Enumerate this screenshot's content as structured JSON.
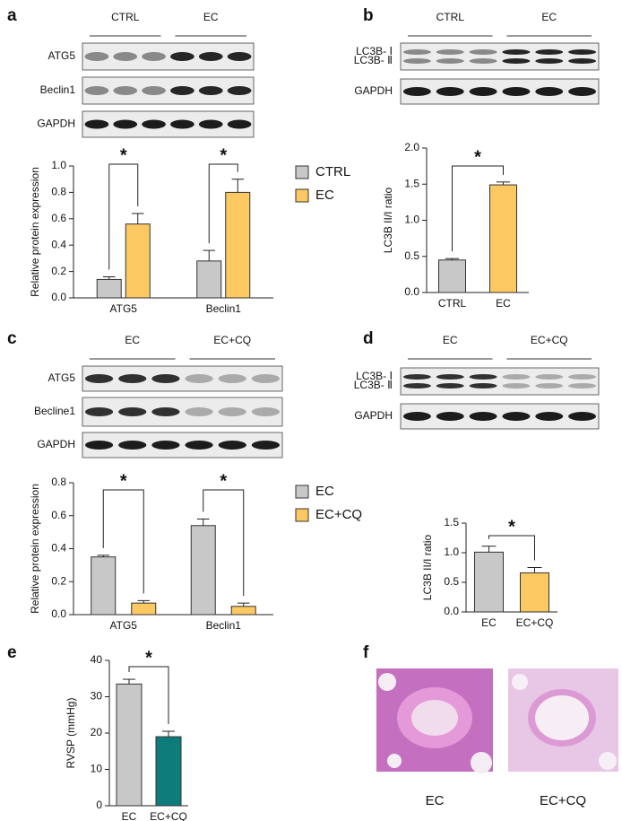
{
  "panel_labels": [
    "a",
    "b",
    "c",
    "d",
    "e",
    "f"
  ],
  "blots": [
    {
      "groups": [
        "CTRL",
        "EC"
      ],
      "rows": [
        [
          "ATG5"
        ],
        [
          "Beclin1"
        ],
        [
          "GAPDH"
        ]
      ]
    },
    {
      "groups": [
        "CTRL",
        "EC"
      ],
      "rows": [
        [
          "LC3B- Ⅰ",
          "LC3B- Ⅱ"
        ],
        [
          "GAPDH"
        ]
      ]
    },
    {
      "groups": [
        "EC",
        "EC+CQ"
      ],
      "rows": [
        [
          "ATG5"
        ],
        [
          "Becline1"
        ],
        [
          "GAPDH"
        ]
      ]
    },
    {
      "groups": [
        "EC",
        "EC+CQ"
      ],
      "rows": [
        [
          "LC3B- Ⅰ",
          "LC3B- Ⅱ"
        ],
        [
          "GAPDH"
        ]
      ]
    }
  ],
  "histology": {
    "labels": [
      "EC",
      "EC+CQ"
    ]
  },
  "chart_data": [
    {
      "type": "bar",
      "y_label": "Relative protein expression",
      "categories": [
        "ATG5",
        "Beclin1"
      ],
      "series": [
        {
          "name": "CTRL",
          "color": "#c8c8c8",
          "values": [
            0.14,
            0.28
          ],
          "errors": [
            0.02,
            0.08
          ]
        },
        {
          "name": "EC",
          "color": "#fcc862",
          "values": [
            0.56,
            0.8
          ],
          "errors": [
            0.08,
            0.1
          ]
        }
      ],
      "ylim": [
        0,
        1
      ],
      "yticks": [
        {
          "value": 0,
          "label": "0.0"
        },
        0.2,
        0.4,
        0.6,
        0.8,
        {
          "value": 1,
          "label": "1.0"
        }
      ],
      "annotations": [
        "*",
        "*"
      ],
      "legend": "right"
    },
    {
      "type": "bar",
      "y_label": "LC3B II/I ratio",
      "categories": [
        "CTRL",
        "EC"
      ],
      "values": [
        0.45,
        1.49
      ],
      "errors": [
        0.02,
        0.04
      ],
      "colors": [
        "#c8c8c8",
        "#fcc862"
      ],
      "ylim": [
        0,
        2
      ],
      "yticks": [
        {
          "value": 0,
          "label": "0.0"
        },
        0.5,
        {
          "value": 1,
          "label": "1.0"
        },
        1.5,
        {
          "value": 2,
          "label": "2.0"
        }
      ],
      "annotations": [
        "*"
      ]
    },
    {
      "type": "bar",
      "y_label": "Relative protein expression",
      "categories": [
        "ATG5",
        "Beclin1"
      ],
      "series": [
        {
          "name": "EC",
          "color": "#c8c8c8",
          "values": [
            0.35,
            0.54
          ],
          "errors": [
            0.01,
            0.04
          ]
        },
        {
          "name": "EC+CQ",
          "color": "#fcc862",
          "values": [
            0.07,
            0.05
          ],
          "errors": [
            0.015,
            0.02
          ]
        }
      ],
      "ylim": [
        0,
        0.8
      ],
      "yticks": [
        {
          "value": 0,
          "label": "0.0"
        },
        0.2,
        0.4,
        0.6,
        0.8
      ],
      "annotations": [
        "*",
        "*"
      ],
      "legend": "right"
    },
    {
      "type": "bar",
      "y_label": "LC3B II/I ratio",
      "categories": [
        "EC",
        "EC+CQ"
      ],
      "values": [
        1.01,
        0.66
      ],
      "errors": [
        0.1,
        0.09
      ],
      "colors": [
        "#c8c8c8",
        "#fcc862"
      ],
      "ylim": [
        0,
        1.5
      ],
      "yticks": [
        {
          "value": 0,
          "label": "0.0"
        },
        0.5,
        {
          "value": 1,
          "label": "1.0"
        },
        1.5
      ],
      "annotations": [
        "*"
      ]
    },
    {
      "type": "bar",
      "y_label": "RVSP (mmHg)",
      "categories": [
        "EC",
        "EC+CQ"
      ],
      "values": [
        33.5,
        19
      ],
      "errors": [
        1.3,
        1.5
      ],
      "colors": [
        "#c8c8c8",
        "#0e7c7b"
      ],
      "ylim": [
        0,
        40
      ],
      "yticks": [
        0,
        10,
        20,
        30,
        40
      ],
      "annotations": [
        "*"
      ]
    }
  ]
}
